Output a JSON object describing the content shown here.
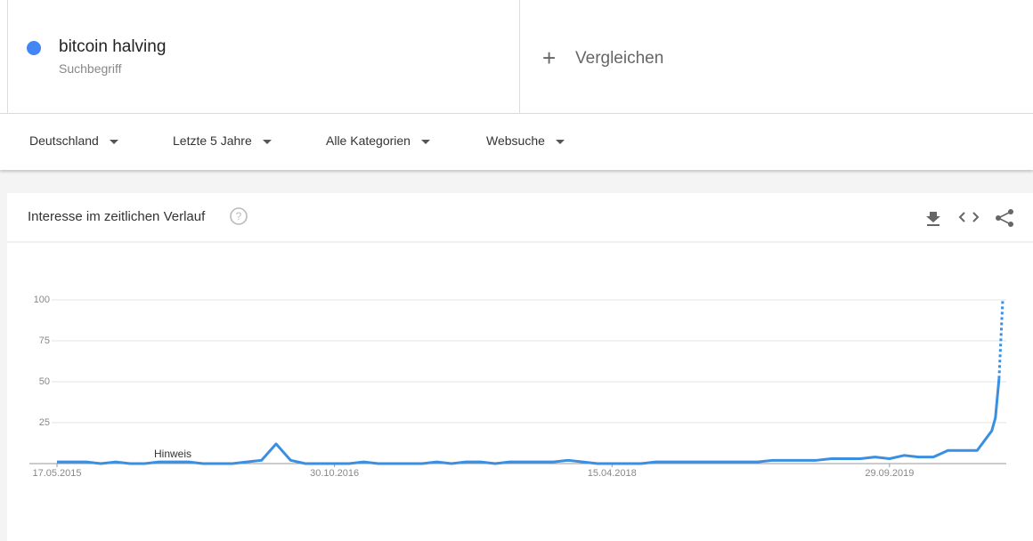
{
  "header": {
    "term": "bitcoin halving",
    "term_type": "Suchbegriff",
    "compare": "Vergleichen"
  },
  "filters": [
    "Deutschland",
    "Letzte 5 Jahre",
    "Alle Kategorien",
    "Websuche"
  ],
  "panel": {
    "title": "Interesse im zeitlichen Verlauf"
  },
  "chart_data": {
    "type": "line",
    "color": "#3b8fe0",
    "x": [
      "17.05.2015",
      "14.06.2015",
      "12.07.2015",
      "09.08.2015",
      "06.09.2015",
      "04.10.2015",
      "01.11.2015",
      "29.11.2015",
      "27.12.2015",
      "24.01.2016",
      "21.02.2016",
      "20.03.2016",
      "17.04.2016",
      "15.05.2016",
      "12.06.2016",
      "10.07.2016",
      "07.08.2016",
      "04.09.2016",
      "02.10.2016",
      "30.10.2016",
      "27.11.2016",
      "25.12.2016",
      "22.01.2017",
      "19.02.2017",
      "19.03.2017",
      "16.04.2017",
      "14.05.2017",
      "11.06.2017",
      "09.07.2017",
      "06.08.2017",
      "03.09.2017",
      "01.10.2017",
      "29.10.2017",
      "26.11.2017",
      "24.12.2017",
      "21.01.2018",
      "18.02.2018",
      "18.03.2018",
      "15.04.2018",
      "13.05.2018",
      "10.06.2018",
      "08.07.2018",
      "05.08.2018",
      "02.09.2018",
      "30.09.2018",
      "28.10.2018",
      "25.11.2018",
      "23.12.2018",
      "20.01.2019",
      "17.02.2019",
      "17.03.2019",
      "14.04.2019",
      "12.05.2019",
      "09.06.2019",
      "07.07.2019",
      "04.08.2019",
      "01.09.2019",
      "29.09.2019",
      "27.10.2019",
      "24.11.2019",
      "22.12.2019",
      "19.01.2020",
      "16.02.2020",
      "15.03.2020",
      "12.04.2020",
      "19.04.2020",
      "26.04.2020",
      "03.05.2020"
    ],
    "values": [
      1,
      1,
      1,
      0,
      1,
      0,
      0,
      1,
      1,
      1,
      0,
      0,
      0,
      1,
      2,
      12,
      2,
      0,
      0,
      0,
      0,
      1,
      0,
      0,
      0,
      0,
      1,
      0,
      1,
      1,
      0,
      1,
      1,
      1,
      1,
      2,
      1,
      0,
      0,
      0,
      0,
      1,
      1,
      1,
      1,
      1,
      1,
      1,
      1,
      2,
      2,
      2,
      2,
      3,
      3,
      3,
      4,
      3,
      5,
      4,
      4,
      8,
      8,
      8,
      20,
      28,
      52,
      100
    ],
    "xlim": [
      "17.05.2015",
      "03.05.2020"
    ],
    "xticks": [
      "17.05.2015",
      "30.10.2016",
      "15.04.2018",
      "29.09.2019"
    ],
    "ylim": [
      0,
      100
    ],
    "yticks": [
      25,
      50,
      75,
      100
    ],
    "grid": true,
    "annotation": "Hinweis"
  }
}
